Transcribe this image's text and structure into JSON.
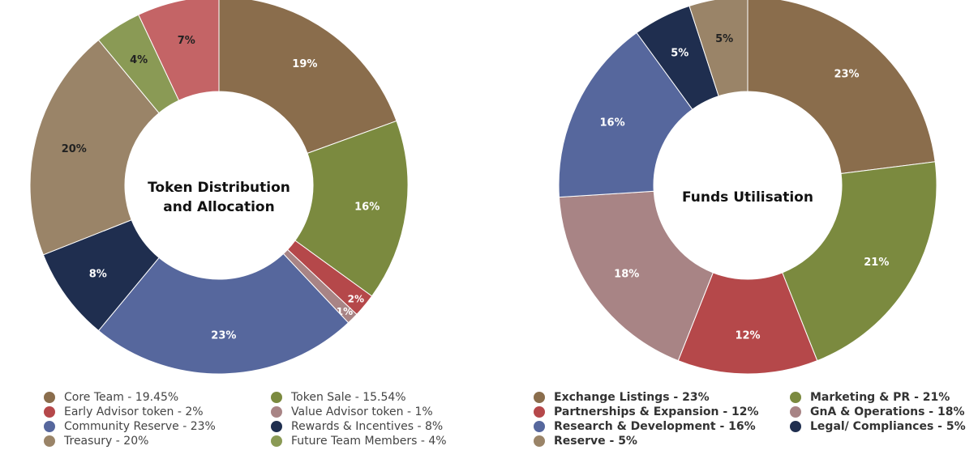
{
  "chart_data": [
    {
      "type": "pie",
      "donut": true,
      "title": "Token Distribution and Allocation",
      "title_lines": [
        "Token Distribution",
        "and Allocation"
      ],
      "slices": [
        {
          "name": "Core Team",
          "value": 19.45,
          "label": "19%",
          "legend": "Core Team - 19.45%",
          "color": "#8a6d4c",
          "label_color": "#ffffff"
        },
        {
          "name": "Token Sale",
          "value": 15.54,
          "label": "16%",
          "legend": "Token Sale - 15.54%",
          "color": "#7b8a3f",
          "label_color": "#ffffff"
        },
        {
          "name": "Early Advisor token",
          "value": 2,
          "label": "2%",
          "legend": "Early Advisor token - 2%",
          "color": "#b5484a",
          "label_color": "#ffffff"
        },
        {
          "name": "Value Advisor token",
          "value": 1,
          "label": "1%",
          "legend": "Value Advisor token - 1%",
          "color": "#a88485",
          "label_color": "#ffffff"
        },
        {
          "name": "Community Reserve",
          "value": 23,
          "label": "23%",
          "legend": "Community Reserve - 23%",
          "color": "#56679d",
          "label_color": "#ffffff"
        },
        {
          "name": "Rewards & Incentives",
          "value": 8,
          "label": "8%",
          "legend": "Rewards & Incentives - 8%",
          "color": "#1f2e4f",
          "label_color": "#ffffff"
        },
        {
          "name": "Treasury",
          "value": 20,
          "label": "20%",
          "legend": "Treasury - 20%",
          "color": "#9a8468",
          "label_color": "#222222"
        },
        {
          "name": "Future Team Members",
          "value": 4,
          "label": "4%",
          "legend": "Future Team Members - 4%",
          "color": "#8a9a55",
          "label_color": "#222222"
        },
        {
          "name": "",
          "value": 7,
          "label": "7%",
          "legend": "",
          "color": "#c46466",
          "label_color": "#222222"
        }
      ]
    },
    {
      "type": "pie",
      "donut": true,
      "title": "Funds Utilisation",
      "title_lines": [
        "Funds Utilisation"
      ],
      "slices": [
        {
          "name": "Exchange Listings",
          "value": 23,
          "label": "23%",
          "legend": "Exchange Listings - 23%",
          "color": "#8a6d4c",
          "label_color": "#ffffff"
        },
        {
          "name": "Marketing & PR",
          "value": 21,
          "label": "21%",
          "legend": "Marketing & PR - 21%",
          "color": "#7b8a3f",
          "label_color": "#ffffff"
        },
        {
          "name": "Partnerships & Expansion",
          "value": 12,
          "label": "12%",
          "legend": "Partnerships & Expansion - 12%",
          "color": "#b5484a",
          "label_color": "#ffffff"
        },
        {
          "name": "GnA & Operations",
          "value": 18,
          "label": "18%",
          "legend": "GnA & Operations - 18%",
          "color": "#a88485",
          "label_color": "#ffffff"
        },
        {
          "name": "Research & Development",
          "value": 16,
          "label": "16%",
          "legend": "Research & Development - 16%",
          "color": "#56679d",
          "label_color": "#ffffff"
        },
        {
          "name": "Legal/ Compliances",
          "value": 5,
          "label": "5%",
          "legend": "Legal/ Compliances - 5%",
          "color": "#1f2e4f",
          "label_color": "#ffffff"
        },
        {
          "name": "Reserve",
          "value": 5,
          "label": "5%",
          "legend": "Reserve - 5%",
          "color": "#9a8468",
          "label_color": "#222222"
        }
      ]
    }
  ],
  "legends": [
    {
      "columns": [
        [
          0,
          2,
          4,
          6
        ],
        [
          1,
          3,
          5,
          7
        ]
      ]
    },
    {
      "columns": [
        [
          0,
          2,
          4,
          6
        ],
        [
          1,
          3,
          5
        ]
      ]
    }
  ]
}
